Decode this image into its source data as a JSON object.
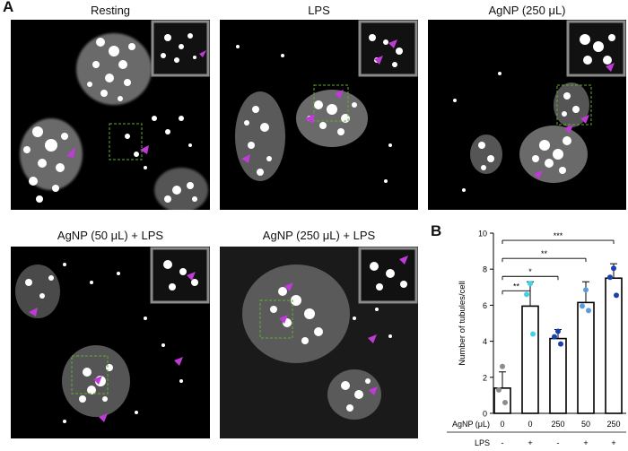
{
  "figure": {
    "panel_a_label": "A",
    "panel_b_label": "B",
    "micrographs": [
      {
        "title": "Resting"
      },
      {
        "title": "LPS"
      },
      {
        "title": "AgNP (250 μL)"
      },
      {
        "title": "AgNP (50 μL) + LPS"
      },
      {
        "title": "AgNP (250 μL) + LPS"
      }
    ],
    "colors": {
      "background": "#000000",
      "cells": "#ffffff",
      "arrowheads": "#c03ad8",
      "roi_box": "#5fae2e",
      "inset_border": "#8a8a8a"
    }
  },
  "chart_data": {
    "type": "bar",
    "ylabel": "Number of tubules/cell",
    "ylim": [
      0,
      10
    ],
    "yticks": [
      0,
      2,
      4,
      6,
      8,
      10
    ],
    "row_labels": [
      "AgNP (μL)",
      "LPS"
    ],
    "categories": [
      {
        "agnp": "0",
        "lps": "-"
      },
      {
        "agnp": "0",
        "lps": "+"
      },
      {
        "agnp": "250",
        "lps": "-"
      },
      {
        "agnp": "50",
        "lps": "+"
      },
      {
        "agnp": "250",
        "lps": "+"
      }
    ],
    "values": [
      1.4,
      5.95,
      4.15,
      6.15,
      7.5
    ],
    "errors": [
      0.9,
      1.35,
      0.5,
      1.15,
      0.8
    ],
    "points": [
      {
        "color": "#8c8c8c",
        "y": [
          2.6,
          1.3,
          0.6
        ]
      },
      {
        "color": "#3fd3e8",
        "y": [
          7.2,
          6.6,
          4.4
        ]
      },
      {
        "color": "#1a3fb0",
        "y": [
          4.55,
          4.25,
          3.85
        ]
      },
      {
        "color": "#5a9be0",
        "y": [
          6.85,
          5.95,
          5.7
        ]
      },
      {
        "color": "#1a3fb0",
        "y": [
          8.05,
          7.55,
          6.55
        ]
      }
    ],
    "significance": [
      {
        "from": 0,
        "to": 1,
        "label": "**"
      },
      {
        "from": 0,
        "to": 2,
        "label": "*"
      },
      {
        "from": 0,
        "to": 3,
        "label": "**"
      },
      {
        "from": 0,
        "to": 4,
        "label": "***"
      }
    ]
  }
}
